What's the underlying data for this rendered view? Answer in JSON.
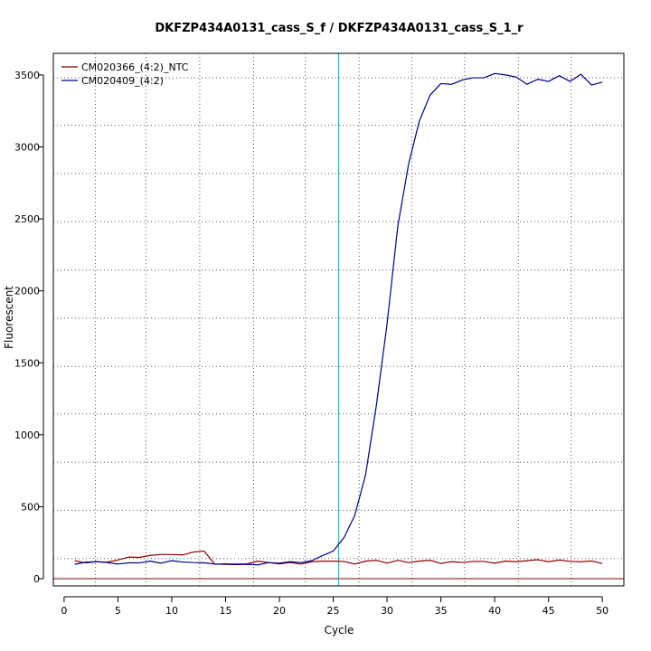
{
  "chart_data": {
    "type": "line",
    "title": "DKFZP434A0131_cass_S_f / DKFZP434A0131_cass_S_1_r",
    "xlabel": "Cycle",
    "ylabel": "Fluorescent",
    "xlim": [
      -1,
      52
    ],
    "ylim": [
      -50,
      3650
    ],
    "x_ticks": [
      0,
      5,
      10,
      15,
      20,
      25,
      30,
      35,
      40,
      45,
      50
    ],
    "y_ticks": [
      0,
      500,
      1000,
      1500,
      2000,
      2500,
      3000,
      3500
    ],
    "x_tick_labels": [
      "0",
      "5",
      "10",
      "15",
      "20",
      "25",
      "30",
      "35",
      "40",
      "45",
      "50"
    ],
    "y_tick_labels": [
      "0",
      "500",
      "1000",
      "1500",
      "2000",
      "2500",
      "3000",
      "3500"
    ],
    "grid": true,
    "grid_style": "dotted",
    "x_grid": [
      2.9,
      7.6,
      12.6,
      17.6,
      22.4,
      27.4,
      32.3,
      37.2,
      42.2,
      47.1
    ],
    "y_grid": [
      140,
      475,
      810,
      1145,
      1475,
      1810,
      2145,
      2480,
      2815,
      3150,
      3480
    ],
    "threshold_line": {
      "x": 25.5,
      "color": "#00cccc"
    },
    "baseline": {
      "y": 0,
      "color": "#8b0000"
    },
    "legend_position": "top-left",
    "x": [
      1,
      2,
      3,
      4,
      5,
      6,
      7,
      8,
      9,
      10,
      11,
      12,
      13,
      14,
      15,
      16,
      17,
      18,
      19,
      20,
      21,
      22,
      23,
      24,
      25,
      26,
      27,
      28,
      29,
      30,
      31,
      32,
      33,
      34,
      35,
      36,
      37,
      38,
      39,
      40,
      41,
      42,
      43,
      44,
      45,
      46,
      47,
      48,
      49,
      50
    ],
    "series": [
      {
        "name": "CM020366_(4:2)_NTC",
        "color": "#8b0000",
        "values": [
          125,
          110,
          118,
          115,
          130,
          150,
          148,
          162,
          168,
          168,
          165,
          185,
          193,
          100,
          103,
          102,
          103,
          122,
          112,
          103,
          112,
          102,
          118,
          122,
          122,
          120,
          102,
          122,
          128,
          108,
          128,
          112,
          122,
          128,
          106,
          118,
          113,
          120,
          120,
          108,
          122,
          118,
          125,
          132,
          118,
          130,
          120,
          118,
          123,
          106
        ]
      },
      {
        "name": "CM020409_(4:2)",
        "color": "#00008b",
        "values": [
          100,
          115,
          118,
          112,
          102,
          110,
          110,
          122,
          108,
          125,
          116,
          112,
          110,
          102,
          100,
          98,
          100,
          96,
          112,
          108,
          118,
          112,
          125,
          160,
          192,
          285,
          440,
          720,
          1200,
          1770,
          2450,
          2880,
          3180,
          3360,
          3440,
          3435,
          3465,
          3480,
          3480,
          3510,
          3500,
          3485,
          3435,
          3470,
          3455,
          3495,
          3455,
          3505,
          3430,
          3450
        ]
      }
    ]
  }
}
